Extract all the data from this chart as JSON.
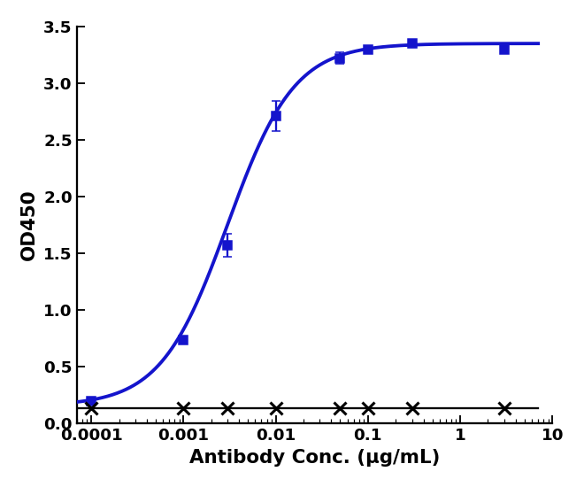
{
  "title": "",
  "xlabel": "Antibody Conc. (μg/mL)",
  "ylabel": "OD450",
  "blue_x": [
    0.0001,
    0.001,
    0.003,
    0.01,
    0.05,
    0.1,
    0.3,
    3.0
  ],
  "blue_y": [
    0.19,
    0.73,
    1.57,
    2.71,
    3.22,
    3.3,
    3.35,
    3.3
  ],
  "blue_yerr": [
    0.015,
    0.02,
    0.1,
    0.13,
    0.05,
    0.025,
    0.025,
    0.025
  ],
  "black_x": [
    0.0001,
    0.001,
    0.003,
    0.01,
    0.05,
    0.1,
    0.3,
    3.0
  ],
  "black_y": [
    0.13,
    0.13,
    0.13,
    0.13,
    0.13,
    0.13,
    0.13,
    0.13
  ],
  "ylim": [
    0.0,
    3.5
  ],
  "yticks": [
    0.0,
    0.5,
    1.0,
    1.5,
    2.0,
    2.5,
    3.0,
    3.5
  ],
  "xtick_labels": [
    "0.0001",
    "0.001",
    "0.01",
    "0.1",
    "1",
    "10"
  ],
  "xtick_vals": [
    0.0001,
    0.001,
    0.01,
    0.1,
    1.0,
    10.0
  ],
  "xmin": 7e-05,
  "xmax": 7.0,
  "line_color": "#1414CC",
  "marker_color": "#1414CC",
  "black_color": "#000000",
  "line_width": 2.5,
  "marker_size": 7,
  "xlabel_fontsize": 14,
  "ylabel_fontsize": 14,
  "tick_fontsize": 12,
  "fig_width": 6.0,
  "fig_height": 5.0
}
